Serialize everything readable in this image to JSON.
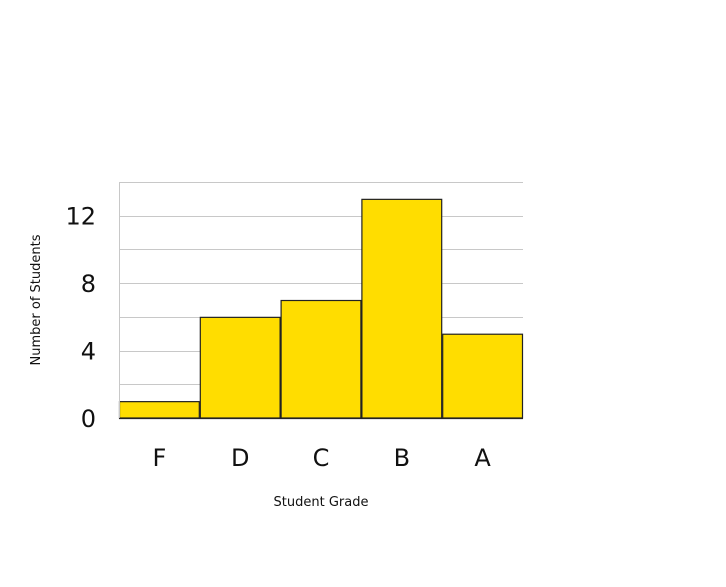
{
  "colors": {
    "bar_fill": "#ffdd00",
    "bar_stroke": "#222222",
    "gridline": "#c8c8c8",
    "text": "#111111",
    "background": "#ffffff"
  },
  "chart_data": {
    "type": "bar",
    "title": "",
    "categories": [
      "F",
      "D",
      "C",
      "B",
      "A"
    ],
    "values": [
      1,
      6,
      7,
      13,
      5
    ],
    "xlabel": "Student Grade",
    "ylabel": "Number of Students",
    "ylim": [
      0,
      14
    ],
    "yticks": [
      0,
      4,
      8,
      12
    ],
    "gridlines": [
      2,
      4,
      6,
      8,
      10,
      12,
      14
    ],
    "grid": true,
    "legend": "none",
    "bar_gap": 0
  }
}
